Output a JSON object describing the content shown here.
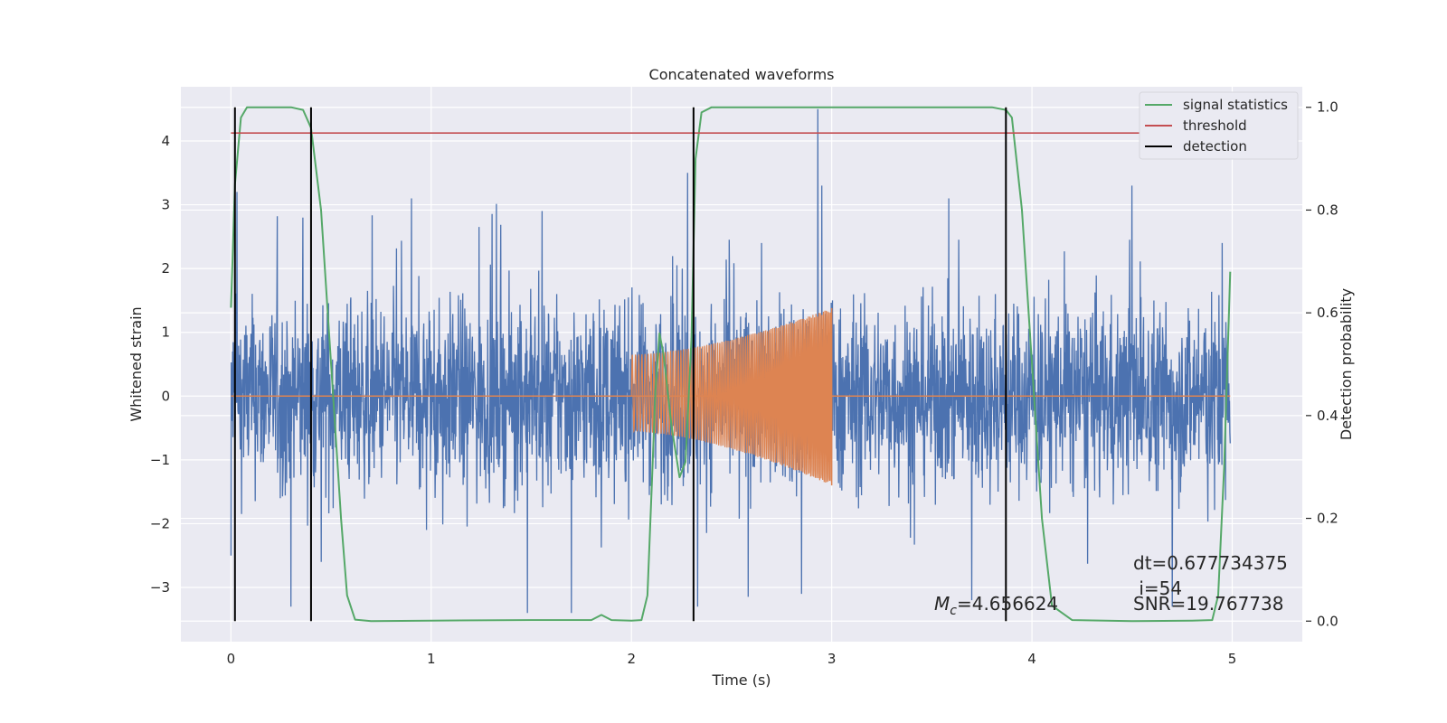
{
  "chart_data": {
    "type": "line",
    "title": "Concatenated waveforms",
    "xlabel": "Time (s)",
    "ylabel": "Whitened strain",
    "y2label": "Detection probability",
    "xlim": [
      -0.25,
      5.35
    ],
    "ylim": [
      -3.85,
      4.85
    ],
    "y2lim": [
      -0.04,
      1.04
    ],
    "xticks": [
      "0",
      "1",
      "2",
      "3",
      "4",
      "5"
    ],
    "yticks": [
      "−3",
      "−2",
      "−1",
      "0",
      "1",
      "2",
      "3",
      "4"
    ],
    "y2ticks": [
      "0.0",
      "0.2",
      "0.4",
      "0.6",
      "0.8",
      "1.0"
    ],
    "grid": true,
    "legend_position": "top-right",
    "colors": {
      "background": "#eaeaf2",
      "strain": "#4c72b0",
      "injection": "#dd8452",
      "signal_statistics": "#55a868",
      "threshold": "#c44e52",
      "detection": "#000000",
      "grid": "#ffffff"
    },
    "series": [
      {
        "name": "signal statistics",
        "axis": "right",
        "x": [
          0.0,
          0.02,
          0.05,
          0.08,
          0.12,
          0.2,
          0.3,
          0.36,
          0.4,
          0.45,
          0.5,
          0.55,
          0.58,
          0.62,
          0.7,
          1.0,
          1.5,
          1.8,
          1.85,
          1.9,
          2.0,
          2.05,
          2.08,
          2.1,
          2.12,
          2.14,
          2.16,
          2.2,
          2.24,
          2.27,
          2.3,
          2.32,
          2.35,
          2.4,
          2.5,
          3.0,
          3.5,
          3.8,
          3.87,
          3.9,
          3.95,
          4.0,
          4.05,
          4.1,
          4.2,
          4.5,
          4.8,
          4.9,
          4.93,
          4.96,
          4.99
        ],
        "y": [
          0.61,
          0.85,
          0.98,
          1.0,
          1.0,
          1.0,
          1.0,
          0.995,
          0.96,
          0.8,
          0.5,
          0.2,
          0.05,
          0.003,
          0.0,
          0.001,
          0.002,
          0.002,
          0.012,
          0.002,
          0.001,
          0.002,
          0.05,
          0.25,
          0.45,
          0.56,
          0.52,
          0.38,
          0.28,
          0.31,
          0.55,
          0.9,
          0.99,
          1.0,
          1.0,
          1.0,
          1.0,
          1.0,
          0.995,
          0.98,
          0.8,
          0.5,
          0.2,
          0.03,
          0.002,
          0.0,
          0.001,
          0.002,
          0.05,
          0.3,
          0.68
        ]
      },
      {
        "name": "threshold",
        "axis": "right",
        "x": [
          0.0,
          4.99
        ],
        "y": [
          0.95,
          0.95
        ]
      },
      {
        "name": "detection",
        "axis": "left",
        "x": [
          0.02,
          0.4,
          2.31,
          3.87
        ]
      }
    ],
    "strain": {
      "axis": "left",
      "x_range": [
        0.0,
        4.99
      ],
      "base_amplitude": 0.95,
      "peak_values": [
        [
          0.0,
          -2.5
        ],
        [
          0.03,
          3.2
        ],
        [
          0.3,
          -3.3
        ],
        [
          0.36,
          2.8
        ],
        [
          0.45,
          -2.6
        ],
        [
          1.48,
          -3.4
        ],
        [
          1.7,
          -3.4
        ],
        [
          2.28,
          3.5
        ],
        [
          2.33,
          -3.3
        ],
        [
          2.65,
          2.4
        ],
        [
          2.85,
          -3.1
        ],
        [
          2.93,
          4.5
        ],
        [
          2.95,
          3.3
        ],
        [
          3.7,
          -3.2
        ],
        [
          4.5,
          3.3
        ],
        [
          4.7,
          -3.3
        ],
        [
          4.95,
          2.4
        ]
      ]
    },
    "injection": {
      "axis": "left",
      "x_range": [
        2.0,
        3.0
      ],
      "start_envelope": [
        -0.55,
        0.65
      ],
      "end_envelope": [
        -1.4,
        1.38
      ],
      "baseline": 0.0
    },
    "annotations": {
      "dt": "dt=0.677734375",
      "i": " i=54",
      "mc_prefix": "M",
      "mc_sub": "c",
      "mc_value": "=4.656624",
      "snr": "SNR=19.767738"
    }
  }
}
